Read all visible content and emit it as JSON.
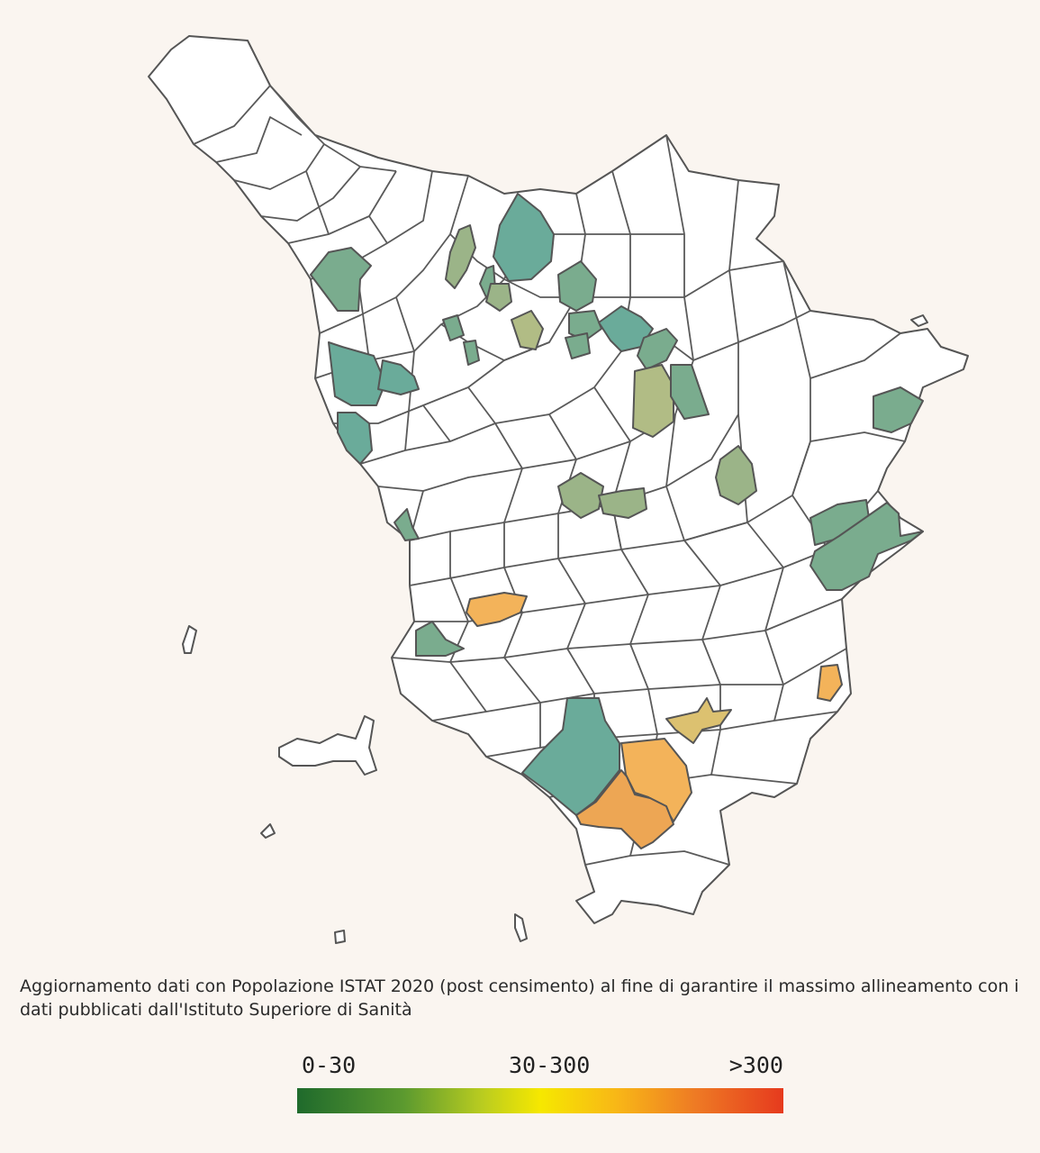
{
  "colors": {
    "background": "#faf5f0",
    "no_data": "#ffffff",
    "border": "#555555",
    "teal": "#6aab9a",
    "green_teal": "#7aac8e",
    "sage": "#9bb488",
    "olive": "#b1bc85",
    "mustard": "#dcc170",
    "light_orange": "#f3b35a",
    "orange": "#eda654",
    "legend_start": "#1f6a2c",
    "legend_mid": "#f6e800",
    "legend_end": "#e63a1e"
  },
  "note": {
    "text": "Aggiornamento dati con Popolazione ISTAT 2020 (post censimento) al fine di garantire il massimo allineamento con i dati pubblicati dall'Istituto Superiore di Sanità"
  },
  "legend": {
    "low": "0-30",
    "mid": "30-300",
    "high": ">300"
  }
}
